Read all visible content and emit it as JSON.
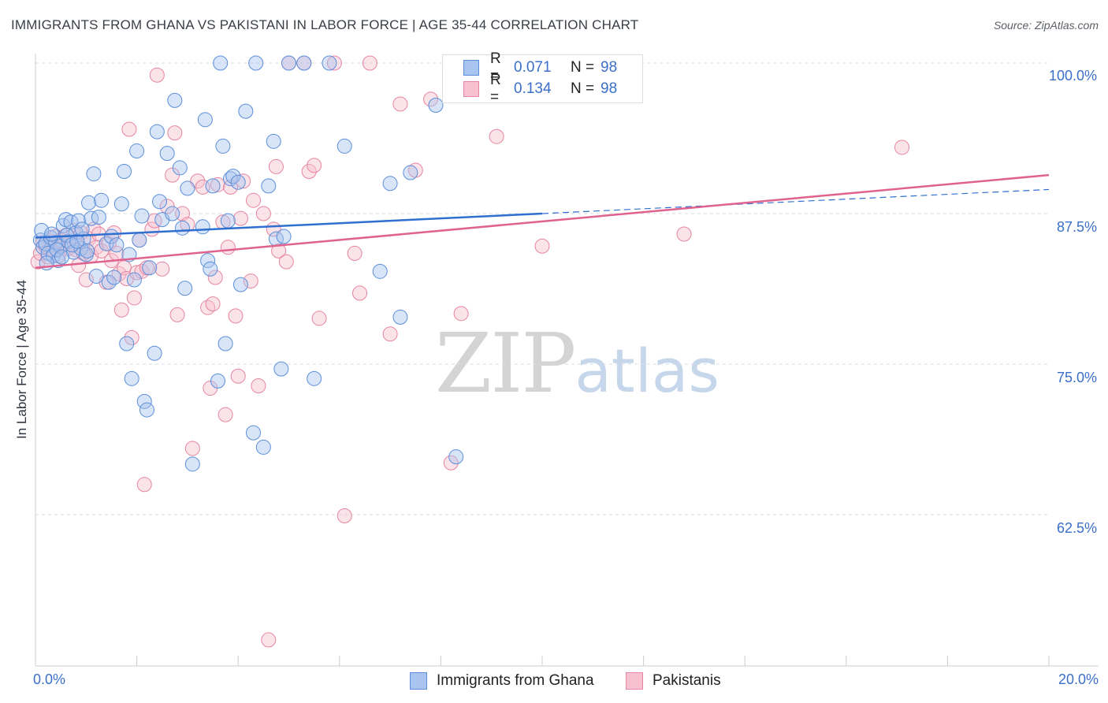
{
  "header": {
    "title": "IMMIGRANTS FROM GHANA VS PAKISTANI IN LABOR FORCE | AGE 35-44 CORRELATION CHART",
    "source": "Source: ZipAtlas.com"
  },
  "watermark": {
    "zip": "ZIP",
    "atlas": "atlas"
  },
  "legend": {
    "ghana": {
      "r_label": "R =",
      "r_value": "0.071",
      "n_label": "N =",
      "n_value": "98"
    },
    "pakistani": {
      "r_label": "R =",
      "r_value": "0.134",
      "n_label": "N =",
      "n_value": "98"
    }
  },
  "bottom_legend": {
    "ghana": "Immigrants from Ghana",
    "pakistani": "Pakistanis"
  },
  "axes": {
    "ylabel": "In Labor Force | Age 35-44",
    "x_ticks": [
      "0.0%",
      "20.0%"
    ],
    "y_ticks": [
      "100.0%",
      "87.5%",
      "75.0%",
      "62.5%"
    ]
  },
  "colors": {
    "ghana_fill": "#a9c4ee",
    "ghana_stroke": "#5b8fd9",
    "ghana_line": "#2f6fd0",
    "pak_fill": "#f7c1d1",
    "pak_stroke": "#e6859f",
    "pak_line": "#e0628e",
    "tick_text": "#3b6fc9"
  },
  "chart_data": {
    "type": "scatter",
    "title": "IMMIGRANTS FROM GHANA VS PAKISTANI IN LABOR FORCE | AGE 35-44 CORRELATION CHART",
    "xlabel": "",
    "ylabel": "In Labor Force | Age 35-44",
    "xlim": [
      0,
      20
    ],
    "ylim": [
      51,
      101.2
    ],
    "y_gridlines": [
      100,
      87.5,
      75,
      62.5
    ],
    "series": [
      {
        "name": "Immigrants from Ghana",
        "R": 0.071,
        "N": 98,
        "trend": {
          "x": [
            0,
            10
          ],
          "y": [
            85.5,
            87.5
          ],
          "dashed_to": [
            20,
            89.5
          ]
        },
        "points": [
          [
            0.1,
            85.3
          ],
          [
            0.15,
            84.7
          ],
          [
            0.2,
            85.0
          ],
          [
            0.25,
            84.2
          ],
          [
            0.3,
            85.5
          ],
          [
            0.35,
            84.0
          ],
          [
            0.4,
            85.1
          ],
          [
            0.45,
            83.6
          ],
          [
            0.5,
            84.8
          ],
          [
            0.55,
            86.5
          ],
          [
            0.6,
            87.0
          ],
          [
            0.65,
            85.2
          ],
          [
            0.7,
            86.8
          ],
          [
            0.75,
            84.3
          ],
          [
            0.8,
            85.9
          ],
          [
            0.85,
            86.9
          ],
          [
            0.9,
            84.6
          ],
          [
            0.95,
            85.4
          ],
          [
            1.0,
            84.1
          ],
          [
            1.05,
            88.4
          ],
          [
            1.1,
            87.1
          ],
          [
            1.15,
            90.8
          ],
          [
            1.2,
            82.3
          ],
          [
            1.25,
            87.2
          ],
          [
            1.3,
            88.6
          ],
          [
            1.4,
            85.0
          ],
          [
            1.45,
            81.8
          ],
          [
            1.5,
            85.6
          ],
          [
            1.55,
            82.2
          ],
          [
            1.6,
            84.9
          ],
          [
            1.7,
            88.3
          ],
          [
            1.75,
            91.0
          ],
          [
            1.8,
            76.7
          ],
          [
            1.85,
            84.1
          ],
          [
            1.9,
            73.8
          ],
          [
            1.95,
            82.0
          ],
          [
            2.0,
            92.7
          ],
          [
            2.05,
            85.3
          ],
          [
            2.1,
            87.3
          ],
          [
            2.15,
            71.9
          ],
          [
            2.2,
            71.2
          ],
          [
            2.25,
            83.0
          ],
          [
            2.35,
            75.9
          ],
          [
            2.4,
            94.3
          ],
          [
            2.45,
            88.5
          ],
          [
            2.5,
            87.0
          ],
          [
            2.6,
            92.5
          ],
          [
            2.7,
            87.5
          ],
          [
            2.75,
            96.9
          ],
          [
            2.85,
            91.3
          ],
          [
            2.9,
            86.3
          ],
          [
            2.95,
            81.3
          ],
          [
            3.0,
            89.6
          ],
          [
            3.1,
            66.7
          ],
          [
            3.3,
            86.4
          ],
          [
            3.35,
            95.3
          ],
          [
            3.4,
            83.6
          ],
          [
            3.45,
            82.9
          ],
          [
            3.5,
            89.8
          ],
          [
            3.6,
            73.6
          ],
          [
            3.65,
            100.0
          ],
          [
            3.7,
            93.1
          ],
          [
            3.75,
            76.7
          ],
          [
            3.8,
            86.9
          ],
          [
            3.85,
            90.4
          ],
          [
            3.9,
            90.6
          ],
          [
            4.0,
            90.1
          ],
          [
            4.05,
            81.6
          ],
          [
            4.15,
            96.0
          ],
          [
            4.3,
            69.3
          ],
          [
            4.35,
            100.0
          ],
          [
            4.5,
            68.1
          ],
          [
            4.6,
            89.8
          ],
          [
            4.7,
            93.5
          ],
          [
            4.75,
            85.4
          ],
          [
            4.85,
            74.6
          ],
          [
            4.9,
            85.6
          ],
          [
            5.0,
            100.0
          ],
          [
            5.3,
            100.0
          ],
          [
            5.5,
            73.8
          ],
          [
            5.8,
            100.0
          ],
          [
            6.1,
            93.1
          ],
          [
            6.8,
            82.7
          ],
          [
            7.0,
            90.0
          ],
          [
            7.2,
            78.9
          ],
          [
            7.4,
            90.9
          ],
          [
            7.9,
            96.5
          ],
          [
            8.3,
            67.3
          ],
          [
            0.12,
            86.1
          ],
          [
            0.22,
            83.4
          ],
          [
            0.32,
            85.8
          ],
          [
            0.42,
            84.5
          ],
          [
            0.52,
            83.9
          ],
          [
            0.62,
            85.7
          ],
          [
            0.72,
            84.9
          ],
          [
            0.82,
            85.2
          ],
          [
            0.92,
            86.2
          ],
          [
            1.02,
            84.4
          ]
        ]
      },
      {
        "name": "Pakistanis",
        "R": 0.134,
        "N": 98,
        "trend": {
          "x": [
            0,
            20
          ],
          "y": [
            83.0,
            90.7
          ]
        },
        "points": [
          [
            0.05,
            83.5
          ],
          [
            0.1,
            84.2
          ],
          [
            0.15,
            85.1
          ],
          [
            0.2,
            84.8
          ],
          [
            0.25,
            83.9
          ],
          [
            0.3,
            85.2
          ],
          [
            0.35,
            84.4
          ],
          [
            0.4,
            85.6
          ],
          [
            0.45,
            84.0
          ],
          [
            0.5,
            85.3
          ],
          [
            0.55,
            84.9
          ],
          [
            0.6,
            85.7
          ],
          [
            0.65,
            84.6
          ],
          [
            0.7,
            85.0
          ],
          [
            0.75,
            86.1
          ],
          [
            0.8,
            84.5
          ],
          [
            0.85,
            83.2
          ],
          [
            0.9,
            85.9
          ],
          [
            0.95,
            84.2
          ],
          [
            1.0,
            82.0
          ],
          [
            1.05,
            85.4
          ],
          [
            1.1,
            84.0
          ],
          [
            1.15,
            86.2
          ],
          [
            1.2,
            84.7
          ],
          [
            1.25,
            85.8
          ],
          [
            1.3,
            84.4
          ],
          [
            1.4,
            81.8
          ],
          [
            1.45,
            85.0
          ],
          [
            1.5,
            83.6
          ],
          [
            1.55,
            85.9
          ],
          [
            1.6,
            84.2
          ],
          [
            1.65,
            82.5
          ],
          [
            1.7,
            79.5
          ],
          [
            1.75,
            83.0
          ],
          [
            1.8,
            82.1
          ],
          [
            1.85,
            94.5
          ],
          [
            1.9,
            77.2
          ],
          [
            1.95,
            80.5
          ],
          [
            2.0,
            82.6
          ],
          [
            2.05,
            85.3
          ],
          [
            2.1,
            82.7
          ],
          [
            2.15,
            65.0
          ],
          [
            2.2,
            83.0
          ],
          [
            2.3,
            86.2
          ],
          [
            2.35,
            86.9
          ],
          [
            2.4,
            99.0
          ],
          [
            2.5,
            82.9
          ],
          [
            2.6,
            88.1
          ],
          [
            2.7,
            90.7
          ],
          [
            2.75,
            94.2
          ],
          [
            2.8,
            79.1
          ],
          [
            2.9,
            87.5
          ],
          [
            3.0,
            86.6
          ],
          [
            3.1,
            68.0
          ],
          [
            3.2,
            90.2
          ],
          [
            3.3,
            89.7
          ],
          [
            3.4,
            79.7
          ],
          [
            3.45,
            73.0
          ],
          [
            3.5,
            80.0
          ],
          [
            3.55,
            82.2
          ],
          [
            3.6,
            89.9
          ],
          [
            3.7,
            86.8
          ],
          [
            3.75,
            70.8
          ],
          [
            3.8,
            84.7
          ],
          [
            3.85,
            89.7
          ],
          [
            3.95,
            79.0
          ],
          [
            4.0,
            74.0
          ],
          [
            4.05,
            87.1
          ],
          [
            4.1,
            90.2
          ],
          [
            4.25,
            81.9
          ],
          [
            4.3,
            88.6
          ],
          [
            4.4,
            73.2
          ],
          [
            4.5,
            87.5
          ],
          [
            4.6,
            52.1
          ],
          [
            4.7,
            86.2
          ],
          [
            4.75,
            91.4
          ],
          [
            4.8,
            84.4
          ],
          [
            4.95,
            83.5
          ],
          [
            5.0,
            100.0
          ],
          [
            5.3,
            100.0
          ],
          [
            5.4,
            91.0
          ],
          [
            5.5,
            91.5
          ],
          [
            5.6,
            78.8
          ],
          [
            5.9,
            100.0
          ],
          [
            6.1,
            62.4
          ],
          [
            6.3,
            84.2
          ],
          [
            6.4,
            80.9
          ],
          [
            6.6,
            100.0
          ],
          [
            7.0,
            77.5
          ],
          [
            7.2,
            96.6
          ],
          [
            7.5,
            91.1
          ],
          [
            7.8,
            97.0
          ],
          [
            8.2,
            66.8
          ],
          [
            8.4,
            79.2
          ],
          [
            9.1,
            93.9
          ],
          [
            10.0,
            84.8
          ],
          [
            12.8,
            85.8
          ],
          [
            17.1,
            93.0
          ]
        ]
      }
    ]
  }
}
